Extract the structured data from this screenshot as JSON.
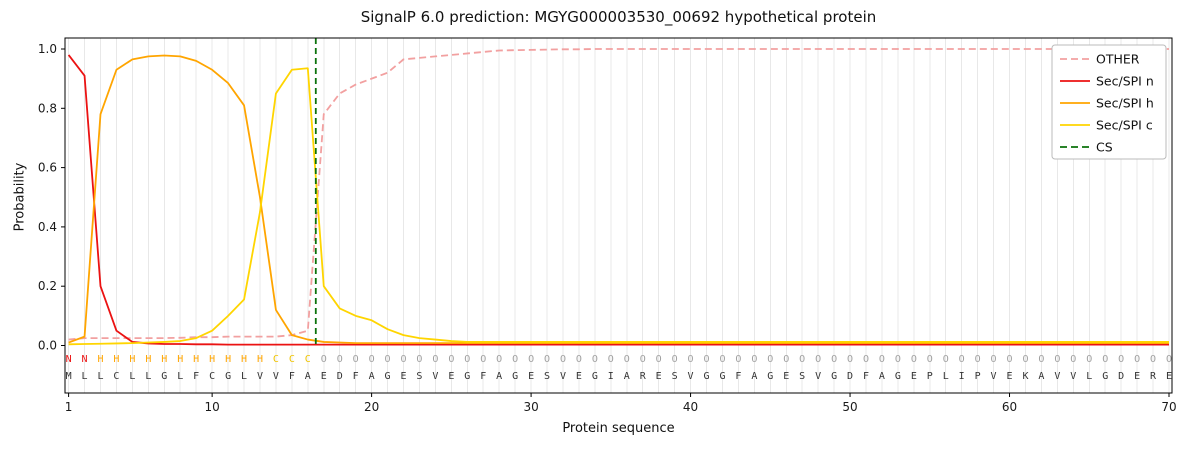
{
  "chart_data": {
    "type": "line",
    "title": "SignalP 6.0 prediction: MGYG000003530_00692 hypothetical protein",
    "xlabel": "Protein sequence",
    "ylabel": "Probability",
    "xticks": [
      1,
      10,
      20,
      30,
      40,
      50,
      60,
      70
    ],
    "yticks": [
      0.0,
      0.2,
      0.4,
      0.6,
      0.8,
      1.0
    ],
    "xlim": [
      0.7,
      70.3
    ],
    "ylim": [
      -0.16,
      1.04
    ],
    "grid": "vertical-per-residue",
    "grid_color": "#e8e8e8",
    "legend_position": "upper right",
    "x": [
      1,
      2,
      3,
      4,
      5,
      6,
      7,
      8,
      9,
      10,
      11,
      12,
      13,
      14,
      15,
      16,
      17,
      18,
      19,
      20,
      21,
      22,
      23,
      24,
      25,
      26,
      27,
      28,
      29,
      30,
      31,
      32,
      33,
      34,
      35,
      36,
      37,
      38,
      39,
      40,
      41,
      42,
      43,
      44,
      45,
      46,
      47,
      48,
      49,
      50,
      51,
      52,
      53,
      54,
      55,
      56,
      57,
      58,
      59,
      60,
      61,
      62,
      63,
      64,
      65,
      66,
      67,
      68,
      69,
      70
    ],
    "series": [
      {
        "id": "other",
        "name": "OTHER",
        "color": "#f2a0a0",
        "dashed": true,
        "values": [
          0.02,
          0.025,
          0.025,
          0.025,
          0.025,
          0.025,
          0.025,
          0.026,
          0.028,
          0.028,
          0.03,
          0.03,
          0.03,
          0.03,
          0.035,
          0.05,
          0.78,
          0.85,
          0.88,
          0.9,
          0.92,
          0.965,
          0.97,
          0.975,
          0.98,
          0.985,
          0.99,
          0.995,
          0.996,
          0.997,
          0.998,
          0.999,
          0.999,
          1.0,
          1.0,
          1.0,
          1.0,
          1.0,
          1.0,
          1.0,
          1.0,
          1.0,
          1.0,
          1.0,
          1.0,
          1.0,
          1.0,
          1.0,
          1.0,
          1.0,
          1.0,
          1.0,
          1.0,
          1.0,
          1.0,
          1.0,
          1.0,
          1.0,
          1.0,
          1.0,
          1.0,
          1.0,
          1.0,
          1.0,
          1.0,
          1.0,
          1.0,
          1.0,
          1.0,
          1.0
        ]
      },
      {
        "id": "sec_spi_n",
        "name": "Sec/SPI n",
        "color": "#eb1212",
        "dashed": false,
        "values": [
          0.98,
          0.91,
          0.2,
          0.05,
          0.012,
          0.007,
          0.005,
          0.005,
          0.004,
          0.004,
          0.003,
          0.003,
          0.003,
          0.003,
          0.003,
          0.003,
          0.003,
          0.003,
          0.003,
          0.003,
          0.003,
          0.003,
          0.003,
          0.003,
          0.003,
          0.003,
          0.003,
          0.003,
          0.003,
          0.003,
          0.003,
          0.003,
          0.003,
          0.003,
          0.003,
          0.003,
          0.003,
          0.003,
          0.003,
          0.003,
          0.003,
          0.003,
          0.003,
          0.003,
          0.003,
          0.003,
          0.003,
          0.003,
          0.003,
          0.003,
          0.003,
          0.003,
          0.003,
          0.003,
          0.003,
          0.003,
          0.003,
          0.003,
          0.003,
          0.003,
          0.003,
          0.003,
          0.003,
          0.003,
          0.003,
          0.003,
          0.003,
          0.003,
          0.003,
          0.003
        ]
      },
      {
        "id": "sec_spi_h",
        "name": "Sec/SPI h",
        "color": "#ffa500",
        "dashed": false,
        "values": [
          0.01,
          0.03,
          0.78,
          0.93,
          0.965,
          0.975,
          0.978,
          0.975,
          0.96,
          0.93,
          0.885,
          0.81,
          0.5,
          0.12,
          0.035,
          0.02,
          0.012,
          0.01,
          0.008,
          0.008,
          0.008,
          0.008,
          0.008,
          0.008,
          0.008,
          0.008,
          0.008,
          0.008,
          0.008,
          0.008,
          0.008,
          0.008,
          0.008,
          0.008,
          0.008,
          0.008,
          0.008,
          0.008,
          0.008,
          0.008,
          0.008,
          0.008,
          0.008,
          0.008,
          0.008,
          0.008,
          0.008,
          0.008,
          0.008,
          0.008,
          0.008,
          0.008,
          0.008,
          0.008,
          0.008,
          0.008,
          0.008,
          0.008,
          0.008,
          0.008,
          0.008,
          0.008,
          0.008,
          0.008,
          0.008,
          0.008,
          0.008,
          0.008,
          0.008,
          0.008
        ]
      },
      {
        "id": "sec_spi_c",
        "name": "Sec/SPI c",
        "color": "#ffd500",
        "dashed": false,
        "values": [
          0.004,
          0.005,
          0.006,
          0.007,
          0.008,
          0.01,
          0.012,
          0.015,
          0.025,
          0.05,
          0.1,
          0.155,
          0.45,
          0.85,
          0.93,
          0.935,
          0.2,
          0.125,
          0.1,
          0.085,
          0.055,
          0.035,
          0.025,
          0.02,
          0.015,
          0.012,
          0.012,
          0.012,
          0.012,
          0.012,
          0.012,
          0.012,
          0.012,
          0.012,
          0.012,
          0.012,
          0.012,
          0.012,
          0.012,
          0.012,
          0.012,
          0.012,
          0.012,
          0.012,
          0.012,
          0.012,
          0.012,
          0.012,
          0.012,
          0.012,
          0.012,
          0.012,
          0.012,
          0.012,
          0.012,
          0.012,
          0.012,
          0.012,
          0.012,
          0.012,
          0.012,
          0.012,
          0.012,
          0.012,
          0.012,
          0.012,
          0.012,
          0.012,
          0.012,
          0.012
        ]
      }
    ],
    "cs_marker": {
      "label": "CS",
      "x": 16.5,
      "color": "#0b720b",
      "dashed": true
    },
    "sequence": "MLLCLLGLFCGLVVFAEDFAGESVEGFAGESVEGIARESVGGFAGESVGDFAGEPLIPVEKAVVLGDERE",
    "region_labels": "NNHHHHHHHHHHHCCCOOOOOOOOOOOOOOOOOOOOOOOOOOOOOOOOOOOOOOOOOOOOOOOOOOOOOO",
    "region_colors": {
      "N": "#eb1212",
      "H": "#ffa500",
      "C": "#f0c400",
      "O": "#a0a0a0"
    },
    "sequence_color": "#333333"
  },
  "legend": {
    "entries": [
      "OTHER",
      "Sec/SPI n",
      "Sec/SPI h",
      "Sec/SPI c",
      "CS"
    ]
  }
}
